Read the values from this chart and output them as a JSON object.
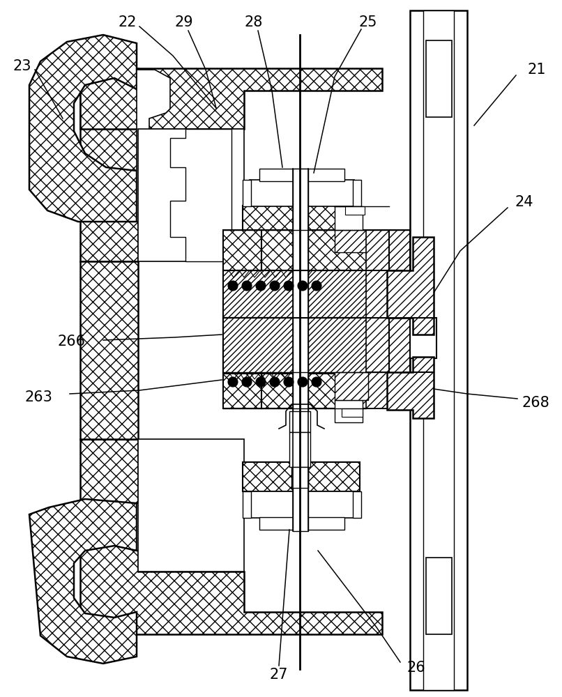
{
  "bg_color": "#ffffff",
  "lc": "#000000",
  "figsize": [
    8.06,
    10.0
  ],
  "dpi": 100
}
